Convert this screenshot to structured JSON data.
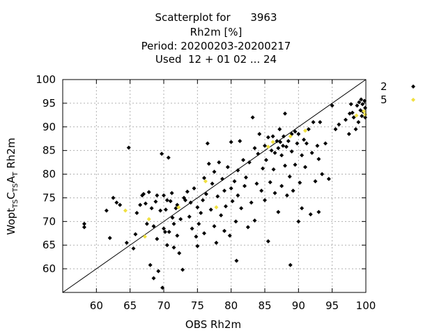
{
  "chart_data": {
    "type": "scatter",
    "title_lines": [
      "Scatterplot for      3963",
      "Rh2m [%]",
      "Period: 20200203-20200217",
      "Used  12 + 01 02 ... 24"
    ],
    "xlabel": "OBS Rh2m",
    "ylabel_parts": {
      "a": "Wopt",
      "b": "T",
      "c": "S",
      "d": "C",
      "e": "T",
      "f": "S",
      "g": "A",
      "h": "T",
      "i": " Rh2m"
    },
    "xlim": [
      55,
      100
    ],
    "ylim": [
      55,
      100
    ],
    "xticks": [
      60,
      65,
      70,
      75,
      80,
      85,
      90,
      95,
      100
    ],
    "yticks": [
      60,
      65,
      70,
      75,
      80,
      85,
      90,
      95,
      100
    ],
    "grid": true,
    "diagonal": true,
    "legend_position": "right",
    "colors": {
      "series2": "#000000",
      "series5": "#f0e040",
      "grid": "#b0b0b0"
    },
    "series": [
      {
        "name": "2",
        "points": [
          [
            58.2,
            69.5
          ],
          [
            58.2,
            68.8
          ],
          [
            61.5,
            72.3
          ],
          [
            62.0,
            66.5
          ],
          [
            62.5,
            75.0
          ],
          [
            63.0,
            74.0
          ],
          [
            63.5,
            73.5
          ],
          [
            64.5,
            65.5
          ],
          [
            64.8,
            85.6
          ],
          [
            65.5,
            64.3
          ],
          [
            65.8,
            67.3
          ],
          [
            66.0,
            71.8
          ],
          [
            66.5,
            73.5
          ],
          [
            66.8,
            75.5
          ],
          [
            67.0,
            75.8
          ],
          [
            67.3,
            73.8
          ],
          [
            67.5,
            69.5
          ],
          [
            67.8,
            76.2
          ],
          [
            68.0,
            60.8
          ],
          [
            68.2,
            72.8
          ],
          [
            68.5,
            58.0
          ],
          [
            68.5,
            69.0
          ],
          [
            68.8,
            74.2
          ],
          [
            69.0,
            75.5
          ],
          [
            69.0,
            66.3
          ],
          [
            69.2,
            59.5
          ],
          [
            69.5,
            72.3
          ],
          [
            69.7,
            84.3
          ],
          [
            69.8,
            56.0
          ],
          [
            70.0,
            68.5
          ],
          [
            70.0,
            75.5
          ],
          [
            70.2,
            67.8
          ],
          [
            70.3,
            72.5
          ],
          [
            70.5,
            74.5
          ],
          [
            70.5,
            65.0
          ],
          [
            70.7,
            83.5
          ],
          [
            70.8,
            67.8
          ],
          [
            71.0,
            74.3
          ],
          [
            71.2,
            76.0
          ],
          [
            71.3,
            70.8
          ],
          [
            71.5,
            69.5
          ],
          [
            71.5,
            64.5
          ],
          [
            71.8,
            72.8
          ],
          [
            72.0,
            73.5
          ],
          [
            72.0,
            67.0
          ],
          [
            72.3,
            63.3
          ],
          [
            72.5,
            70.5
          ],
          [
            72.8,
            59.8
          ],
          [
            73.0,
            75.0
          ],
          [
            73.2,
            74.5
          ],
          [
            73.5,
            76.3
          ],
          [
            73.8,
            71.0
          ],
          [
            74.0,
            74.0
          ],
          [
            74.2,
            68.5
          ],
          [
            74.5,
            77.0
          ],
          [
            74.8,
            66.8
          ],
          [
            75.0,
            73.0
          ],
          [
            75.0,
            64.8
          ],
          [
            75.2,
            69.5
          ],
          [
            75.5,
            71.8
          ],
          [
            75.8,
            74.5
          ],
          [
            76.0,
            79.2
          ],
          [
            76.0,
            67.5
          ],
          [
            76.3,
            75.8
          ],
          [
            76.5,
            86.5
          ],
          [
            76.7,
            82.2
          ],
          [
            77.0,
            72.5
          ],
          [
            77.2,
            78.0
          ],
          [
            77.5,
            69.0
          ],
          [
            77.5,
            80.5
          ],
          [
            77.8,
            65.5
          ],
          [
            78.0,
            75.3
          ],
          [
            78.2,
            82.5
          ],
          [
            78.5,
            71.3
          ],
          [
            78.7,
            79.0
          ],
          [
            79.0,
            68.0
          ],
          [
            79.0,
            76.5
          ],
          [
            79.2,
            73.2
          ],
          [
            79.5,
            81.5
          ],
          [
            79.8,
            67.0
          ],
          [
            80.0,
            86.8
          ],
          [
            80.0,
            77.0
          ],
          [
            80.2,
            74.3
          ],
          [
            80.5,
            78.5
          ],
          [
            80.7,
            70.0
          ],
          [
            80.8,
            61.7
          ],
          [
            81.0,
            75.5
          ],
          [
            81.0,
            80.8
          ],
          [
            81.3,
            87.0
          ],
          [
            81.5,
            72.8
          ],
          [
            81.8,
            83.0
          ],
          [
            82.0,
            77.5
          ],
          [
            82.2,
            79.3
          ],
          [
            82.5,
            68.8
          ],
          [
            82.7,
            82.5
          ],
          [
            83.0,
            74.0
          ],
          [
            83.2,
            92.0
          ],
          [
            83.5,
            85.5
          ],
          [
            83.5,
            70.2
          ],
          [
            83.8,
            78.0
          ],
          [
            84.0,
            84.3
          ],
          [
            84.2,
            88.5
          ],
          [
            84.5,
            76.5
          ],
          [
            84.7,
            81.2
          ],
          [
            85.0,
            86.0
          ],
          [
            85.0,
            74.5
          ],
          [
            85.2,
            83.0
          ],
          [
            85.5,
            87.8
          ],
          [
            85.5,
            65.8
          ],
          [
            85.8,
            78.3
          ],
          [
            86.0,
            85.0
          ],
          [
            86.2,
            88.0
          ],
          [
            86.3,
            81.0
          ],
          [
            86.5,
            84.5
          ],
          [
            86.5,
            76.0
          ],
          [
            86.8,
            87.0
          ],
          [
            87.0,
            85.5
          ],
          [
            87.0,
            72.0
          ],
          [
            87.2,
            89.5
          ],
          [
            87.3,
            86.8
          ],
          [
            87.5,
            84.0
          ],
          [
            87.5,
            77.5
          ],
          [
            87.7,
            86.0
          ],
          [
            87.8,
            88.0
          ],
          [
            88.0,
            92.8
          ],
          [
            88.0,
            81.8
          ],
          [
            88.2,
            85.8
          ],
          [
            88.3,
            75.5
          ],
          [
            88.5,
            87.0
          ],
          [
            88.7,
            79.5
          ],
          [
            88.8,
            60.8
          ],
          [
            89.0,
            88.5
          ],
          [
            89.0,
            84.8
          ],
          [
            89.2,
            76.5
          ],
          [
            89.5,
            89.0
          ],
          [
            89.5,
            82.0
          ],
          [
            89.8,
            86.5
          ],
          [
            90.0,
            70.0
          ],
          [
            90.0,
            88.5
          ],
          [
            90.2,
            78.2
          ],
          [
            90.5,
            84.0
          ],
          [
            90.5,
            72.8
          ],
          [
            90.8,
            87.3
          ],
          [
            91.0,
            81.5
          ],
          [
            91.2,
            86.5
          ],
          [
            91.5,
            89.5
          ],
          [
            91.8,
            71.5
          ],
          [
            92.0,
            84.5
          ],
          [
            92.2,
            91.0
          ],
          [
            92.5,
            78.5
          ],
          [
            92.8,
            86.0
          ],
          [
            93.0,
            83.2
          ],
          [
            93.0,
            72.0
          ],
          [
            93.2,
            91.0
          ],
          [
            93.5,
            80.0
          ],
          [
            94.0,
            86.5
          ],
          [
            94.5,
            79.0
          ],
          [
            95.0,
            94.5
          ],
          [
            95.5,
            89.5
          ],
          [
            96.0,
            90.5
          ],
          [
            97.0,
            91.5
          ],
          [
            97.5,
            88.5
          ],
          [
            97.8,
            94.8
          ],
          [
            98.0,
            93.0
          ],
          [
            98.2,
            92.0
          ],
          [
            98.5,
            89.5
          ],
          [
            98.7,
            94.5
          ],
          [
            99.0,
            95.2
          ],
          [
            99.2,
            93.5
          ],
          [
            99.4,
            92.3
          ],
          [
            99.5,
            94.8
          ],
          [
            99.6,
            93.2
          ],
          [
            99.8,
            95.5
          ],
          [
            99.9,
            92.0
          ],
          [
            99.9,
            94.0
          ],
          [
            99.3,
            95.8
          ],
          [
            98.9,
            91.0
          ],
          [
            97.6,
            92.8
          ]
        ]
      },
      {
        "name": "5",
        "points": [
          [
            64.3,
            72.3
          ],
          [
            67.2,
            66.8
          ],
          [
            67.8,
            70.5
          ],
          [
            72.2,
            73.0
          ],
          [
            76.2,
            78.5
          ],
          [
            77.8,
            73.0
          ],
          [
            85.5,
            85.8
          ],
          [
            86.2,
            86.8
          ],
          [
            88.8,
            88.0
          ],
          [
            91.0,
            89.2
          ],
          [
            98.6,
            92.4
          ],
          [
            99.7,
            93.3
          ],
          [
            99.9,
            92.6
          ]
        ]
      }
    ]
  }
}
